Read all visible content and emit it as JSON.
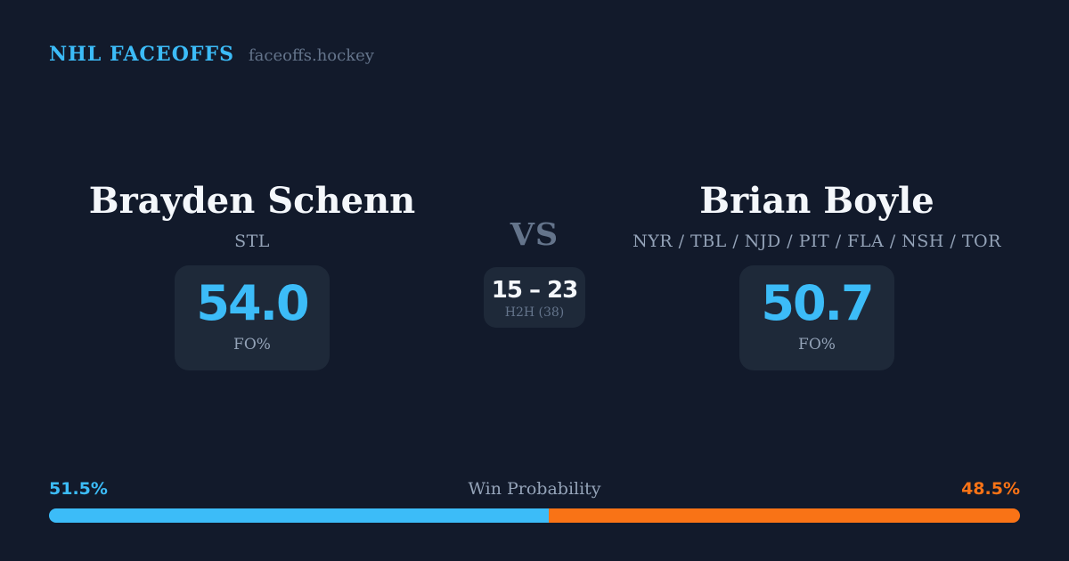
{
  "header": {
    "brand": "NHL FACEOFFS",
    "site": "faceoffs.hockey"
  },
  "players": {
    "left": {
      "name": "Brayden Schenn",
      "teams": "STL",
      "fo_pct": "54.0",
      "fo_label": "FO%"
    },
    "right": {
      "name": "Brian Boyle",
      "teams": "NYR / TBL / NJD / PIT / FLA / NSH / TOR",
      "fo_pct": "50.7",
      "fo_label": "FO%"
    }
  },
  "matchup": {
    "vs_label": "VS",
    "h2h_score": "15 – 23",
    "h2h_label": "H2H (38)"
  },
  "win_probability": {
    "title": "Win Probability",
    "left_pct": "51.5%",
    "right_pct": "48.5%",
    "left_width": "51.5%"
  },
  "chart_data": {
    "type": "bar",
    "title": "Win Probability",
    "categories": [
      "Win Probability"
    ],
    "series": [
      {
        "name": "Brayden Schenn",
        "values": [
          51.5
        ]
      },
      {
        "name": "Brian Boyle",
        "values": [
          48.5
        ]
      }
    ],
    "unit": "%",
    "stacked": true,
    "colors": [
      "#3cbcf8",
      "#f97316"
    ]
  },
  "colors": {
    "background": "#121a2b",
    "card": "#1e2939",
    "accent_blue": "#3cbcf8",
    "accent_orange": "#f97316",
    "text_primary": "#f4f7fb",
    "text_muted": "#94a3b8",
    "text_dim": "#64748b"
  }
}
